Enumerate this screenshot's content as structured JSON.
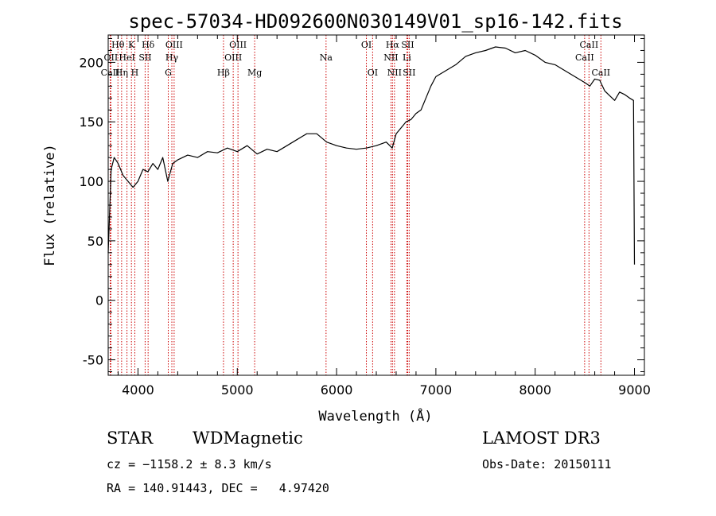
{
  "chart_data": {
    "type": "line",
    "title": "spec-57034-HD092600N030149V01_sp16-142.fits",
    "xlabel": "Wavelength (Å)",
    "ylabel": "Flux (relative)",
    "xlim": [
      3700,
      9100
    ],
    "ylim": [
      -63,
      223
    ],
    "xticks": [
      4000,
      5000,
      6000,
      7000,
      8000,
      9000
    ],
    "yticks": [
      -50,
      0,
      50,
      100,
      150,
      200
    ],
    "grid": false,
    "series": [
      {
        "name": "flux",
        "x": [
          3700,
          3730,
          3760,
          3800,
          3850,
          3900,
          3950,
          4000,
          4050,
          4100,
          4150,
          4200,
          4250,
          4300,
          4350,
          4400,
          4500,
          4600,
          4700,
          4800,
          4900,
          5000,
          5100,
          5200,
          5300,
          5400,
          5500,
          5600,
          5700,
          5800,
          5900,
          6000,
          6100,
          6200,
          6300,
          6400,
          6500,
          6560,
          6600,
          6650,
          6700,
          6750,
          6800,
          6850,
          6900,
          6950,
          7000,
          7100,
          7200,
          7300,
          7400,
          7500,
          7600,
          7700,
          7800,
          7900,
          8000,
          8100,
          8200,
          8300,
          8400,
          8500,
          8550,
          8600,
          8650,
          8700,
          8750,
          8800,
          8850,
          8900,
          8950,
          8990,
          9000
        ],
        "y": [
          40,
          110,
          120,
          115,
          105,
          100,
          95,
          100,
          110,
          108,
          115,
          110,
          120,
          100,
          115,
          118,
          122,
          120,
          125,
          124,
          128,
          125,
          130,
          123,
          127,
          125,
          130,
          135,
          140,
          140,
          133,
          130,
          128,
          127,
          128,
          130,
          133,
          128,
          140,
          145,
          150,
          152,
          157,
          160,
          170,
          180,
          188,
          193,
          198,
          205,
          208,
          210,
          213,
          212,
          208,
          210,
          206,
          200,
          198,
          193,
          188,
          183,
          180,
          186,
          185,
          176,
          172,
          168,
          175,
          173,
          170,
          168,
          30
        ]
      }
    ],
    "line_color": "#000000",
    "marker_color": "#cc0000",
    "spectral_lines": [
      {
        "name": "Hθ",
        "wavelength": 3798,
        "row": 0
      },
      {
        "name": "OII",
        "wavelength": 3727,
        "row": 1
      },
      {
        "name": "CaII",
        "wavelength": 3720,
        "row": 2
      },
      {
        "name": "K",
        "wavelength": 3934,
        "row": 0
      },
      {
        "name": "HeI",
        "wavelength": 3889,
        "row": 1
      },
      {
        "name": "Hη",
        "wavelength": 3835,
        "row": 2
      },
      {
        "name": "Hδ",
        "wavelength": 4102,
        "row": 0
      },
      {
        "name": "SII",
        "wavelength": 4072,
        "row": 1
      },
      {
        "name": "H",
        "wavelength": 3968,
        "row": 2
      },
      {
        "name": "OIII",
        "wavelength": 4364,
        "row": 0
      },
      {
        "name": "Hγ",
        "wavelength": 4341,
        "row": 1
      },
      {
        "name": "G",
        "wavelength": 4305,
        "row": 2
      },
      {
        "name": "OIII",
        "wavelength": 5007,
        "row": 0
      },
      {
        "name": "OIII",
        "wavelength": 4959,
        "row": 1
      },
      {
        "name": "Hβ",
        "wavelength": 4861,
        "row": 2
      },
      {
        "name": "Mg",
        "wavelength": 5175,
        "row": 2
      },
      {
        "name": "Na",
        "wavelength": 5894,
        "row": 1
      },
      {
        "name": "OI",
        "wavelength": 6300,
        "row": 0
      },
      {
        "name": "OI",
        "wavelength": 6363,
        "row": 2
      },
      {
        "name": "Hα",
        "wavelength": 6563,
        "row": 0
      },
      {
        "name": "SII",
        "wavelength": 6716,
        "row": 0
      },
      {
        "name": "NII",
        "wavelength": 6548,
        "row": 1
      },
      {
        "name": "Li",
        "wavelength": 6708,
        "row": 1
      },
      {
        "name": "NII",
        "wavelength": 6583,
        "row": 2
      },
      {
        "name": "SII",
        "wavelength": 6731,
        "row": 2
      },
      {
        "name": "CaII",
        "wavelength": 8542,
        "row": 0
      },
      {
        "name": "CaII",
        "wavelength": 8498,
        "row": 1
      },
      {
        "name": "CaII",
        "wavelength": 8662,
        "row": 2
      }
    ]
  },
  "info": {
    "object_class": "STAR",
    "subclass": "WDMagnetic",
    "survey": "LAMOST DR3",
    "redshift": "cz = −1158.2 ± 8.3 km/s",
    "obs_date": "Obs-Date: 20150111",
    "coordinates": "RA = 140.91443, DEC =   4.97420"
  }
}
